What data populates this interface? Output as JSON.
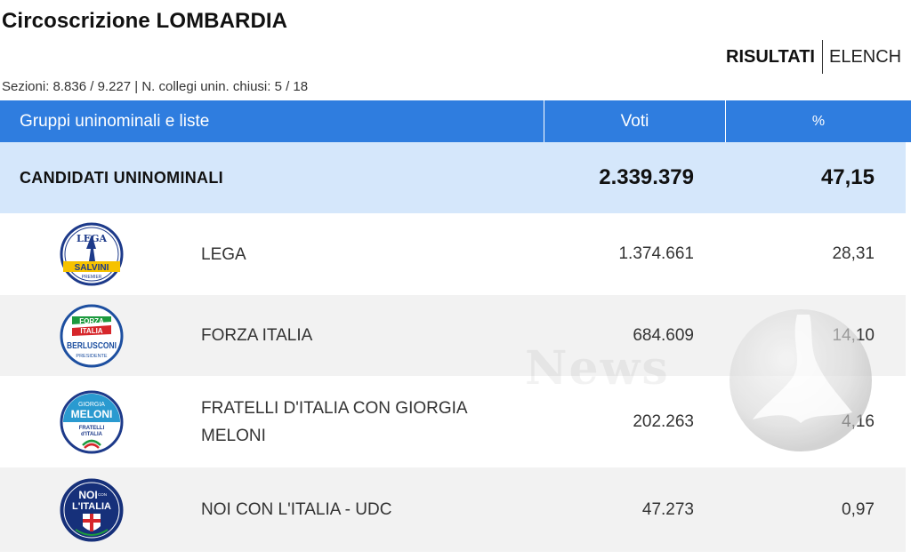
{
  "page": {
    "title": "Circoscrizione LOMBARDIA"
  },
  "view_tabs": {
    "active": "RISULTATI",
    "other": "ELENCH"
  },
  "sections_info": "Sezioni: 8.836 / 9.227 | N. collegi unin. chiusi: 5 / 18",
  "table": {
    "headers": {
      "groups": "Gruppi uninominali e liste",
      "votes": "Voti",
      "pct": "%"
    },
    "summary": {
      "label": "CANDIDATI UNINOMINALI",
      "votes": "2.339.379",
      "pct": "47,15"
    },
    "rows": [
      {
        "name": "LEGA",
        "votes": "1.374.661",
        "pct": "28,31",
        "logo": {
          "icon": "lega-logo-icon",
          "top_text": "LEGA",
          "band_text": "SALVINI",
          "bottom_text": "PREMIER",
          "band_color": "#f6c200",
          "ring_color": "#1d3a8a"
        }
      },
      {
        "name": "FORZA ITALIA",
        "votes": "684.609",
        "pct": "14,10",
        "logo": {
          "icon": "forza-italia-logo-icon",
          "top_text_1": "FORZA",
          "top_text_2": "ITALIA",
          "band_text": "BERLUSCONI",
          "bottom_text": "PRESIDENTE",
          "ring_color": "#1d4fa0"
        }
      },
      {
        "name": "FRATELLI D'ITALIA CON GIORGIA MELONI",
        "votes": "202.263",
        "pct": "4,16",
        "logo": {
          "icon": "fratelli-italia-logo-icon",
          "top_text_1": "GIORGIA",
          "top_text_2": "MELONI",
          "bottom_text_1": "FRATELLI",
          "bottom_text_2": "d'ITALIA",
          "ring_color": "#1d3a8a"
        }
      },
      {
        "name": "NOI CON L'ITALIA - UDC",
        "votes": "47.273",
        "pct": "0,97",
        "logo": {
          "icon": "noi-con-italia-logo-icon",
          "text_1": "NOI",
          "text_small": "CON",
          "text_2": "L'ITALIA",
          "ring_color": "#16307a"
        }
      }
    ]
  },
  "watermark": {
    "icon": "sphere-watermark-icon",
    "text": "News"
  }
}
